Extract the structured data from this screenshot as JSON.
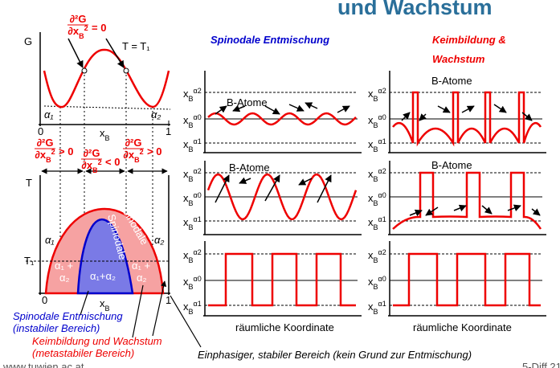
{
  "header": {
    "title": "und Wachstum"
  },
  "g_diagram": {
    "y_label": "G",
    "temperature": "T = T₁",
    "inflection": {
      "num": "∂²G",
      "den": "∂x",
      "sub": "B",
      "sup": "2",
      "rel": "= 0"
    },
    "alpha1": "α₁",
    "alpha2": "α₂",
    "x0": "0",
    "x1": "1",
    "xb": {
      "x": "x",
      "sub": "B"
    }
  },
  "stability": [
    {
      "num": "∂²G",
      "den": "∂x",
      "sub": "B",
      "sup": "2",
      "rel": "> 0"
    },
    {
      "num": "∂²G",
      "den": "∂x",
      "sub": "B",
      "sup": "2",
      "rel": "< 0"
    },
    {
      "num": "∂²G",
      "den": "∂x",
      "sub": "B",
      "sup": "2",
      "rel": "> 0"
    }
  ],
  "phase_diagram": {
    "y_label": "T",
    "t1": "T₁",
    "alpha1": "α₁",
    "alpha2": "α₂",
    "spinodale": "Spinodale",
    "binodale": "Binodale",
    "mix": "α₁+α₂",
    "mix_left": [
      "α₁ +",
      "α₂"
    ],
    "mix_right": [
      "α₁ +",
      "α₂"
    ],
    "x0": "0",
    "x1": "1",
    "xb": {
      "x": "x",
      "sub": "B"
    }
  },
  "captions": {
    "spinodal": [
      "Spinodale Entmischung",
      "(instabiler Bereich)"
    ],
    "nucleation": [
      "Keimbildung und Wachstum",
      "(metastabiler Bereich)"
    ],
    "stable": "Einphasiger, stabiler Bereich (kein Grund zur Entmischung)"
  },
  "columns": {
    "spinodal": "Spinodale Entmischung",
    "nucleation": [
      "Keimbildung &",
      "Wachstum"
    ]
  },
  "levels": {
    "x": "x",
    "sub": "B",
    "sup": [
      "α2",
      "α0",
      "α1"
    ]
  },
  "b_atoms": [
    "B-Atome",
    "B-Atome",
    "B-Atome",
    "B-Atome"
  ],
  "x_axis": [
    "räumliche Koordinate",
    "räumliche Koordinate"
  ],
  "footer": {
    "url": "www.tuwien.ac.at",
    "page": "5-Diff 21"
  }
}
